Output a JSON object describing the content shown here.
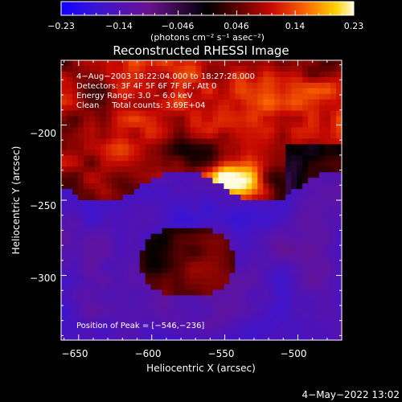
{
  "chart_data": {
    "type": "heatmap",
    "title": "Reconstructed RHESSI Image",
    "xlabel": "Heliocentric X (arcsec)",
    "ylabel": "Heliocentric Y (arcsec)",
    "xlim": [
      -662,
      -470
    ],
    "ylim": [
      -343,
      -157
    ],
    "x_ticks": [
      -650,
      -600,
      -550,
      -500
    ],
    "y_ticks": [
      -200,
      -250,
      -300
    ],
    "x_tick_labels": [
      "−650",
      "−600",
      "−550",
      "−500"
    ],
    "y_tick_labels": [
      "−200",
      "−250",
      "−300"
    ],
    "colorbar": {
      "range": [
        -0.23,
        0.23
      ],
      "tick_labels": [
        "−0.23",
        "−0.14",
        "−0.046",
        "0.046",
        "0.14",
        "0.23"
      ],
      "label": "(photons cm⁻² s⁻¹ asec⁻²)"
    },
    "annotations": {
      "time_range": "4−Aug−2003 18:22:04.000 to 18:27:28.000",
      "detectors": "Detectors: 3F 4F 5F 6F 7F 8F, Att 0",
      "energy_range": "Energy Range: 3.0 − 6.0 keV",
      "clean_counts": "Clean     Total counts: 3.69E+04",
      "peak_position": "Position of Peak = [−546,−236]"
    },
    "peak": {
      "x": -546,
      "y": -236
    },
    "grid": false
  },
  "footer_date": "4−May−2022 13:02"
}
